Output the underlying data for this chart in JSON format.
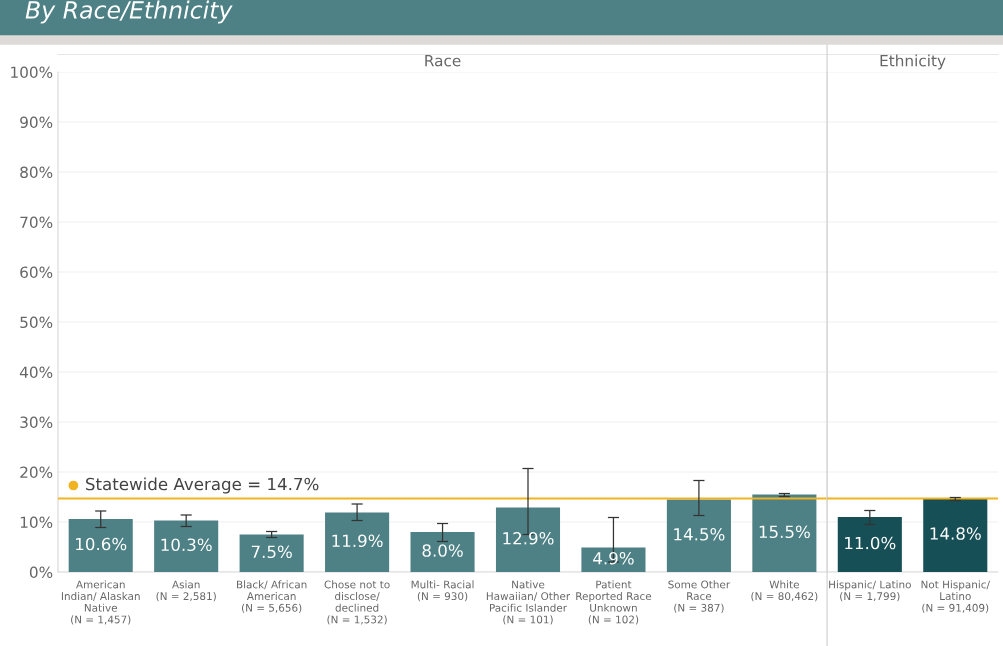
{
  "chart_data": [
    {
      "type": "bar",
      "title": "By Race/Ethnicity",
      "subtitle": "Race",
      "categories": [
        "American\nIndian/ Alaskan\nNative\n(N = 1,457)",
        "Asian\n(N = 2,581)",
        "Black/ African\nAmerican\n(N = 5,656)",
        "Chose not to\ndisclose/\ndeclined\n(N = 1,532)",
        "Multi- Racial\n(N = 930)",
        "Native\nHawaiian/ Other\nPacific Islander\n(N = 101)",
        "Patient\nReported Race\nUnknown\n(N = 102)",
        "Some Other\nRace\n(N = 387)",
        "White\n(N = 80,462)"
      ],
      "series": [
        {
          "color": "#4e8185",
          "values": [
            10.6,
            10.3,
            7.5,
            11.9,
            8.0,
            12.9,
            4.9,
            14.5,
            15.5
          ],
          "value_labels": [
            "10.6%",
            "10.3%",
            "7.5%",
            "11.9%",
            "8.0%",
            "12.9%",
            "4.9%",
            "14.5%",
            "15.5%"
          ],
          "errors": [
            [
              8.9,
              12.2
            ],
            [
              9.1,
              11.4
            ],
            [
              6.9,
              8.1
            ],
            [
              10.3,
              13.6
            ],
            [
              6.1,
              9.7
            ],
            [
              7.5,
              20.7
            ],
            [
              2.0,
              10.9
            ],
            [
              11.3,
              18.3
            ],
            [
              15.1,
              15.7
            ]
          ]
        }
      ],
      "ylim": [
        0,
        100
      ],
      "yticks": [
        {
          "value": 0,
          "label": "0%"
        },
        {
          "value": 10,
          "label": "10%"
        },
        {
          "value": 20,
          "label": "20%"
        },
        {
          "value": 30,
          "label": "30%"
        },
        {
          "value": 40,
          "label": "40%"
        },
        {
          "value": 50,
          "label": "50%"
        },
        {
          "value": 60,
          "label": "60%"
        },
        {
          "value": 70,
          "label": "70%"
        },
        {
          "value": 80,
          "label": "80%"
        },
        {
          "value": 90,
          "label": "90%"
        },
        {
          "value": 100,
          "label": "100%"
        }
      ],
      "grid": "y",
      "ref_lines": [
        {
          "axis": "y",
          "value": 14.7,
          "label": "Statewide Average = 14.7%",
          "color": "#f0b323"
        }
      ]
    },
    {
      "type": "bar",
      "subtitle": "Ethnicity",
      "categories": [
        "Hispanic/ Latino\n(N = 1,799)",
        "Not Hispanic/\nLatino\n(N = 91,409)"
      ],
      "series": [
        {
          "color": "#174f56",
          "values": [
            11.0,
            14.8
          ],
          "value_labels": [
            "11.0%",
            "14.8%"
          ],
          "errors": [
            [
              9.5,
              12.3
            ],
            [
              14.3,
              14.9
            ]
          ]
        }
      ],
      "ylim": [
        0,
        100
      ],
      "yticks": [
        0,
        10,
        20,
        30,
        40,
        50,
        60,
        70,
        80,
        90,
        100
      ],
      "grid": "y",
      "tick_labels": "x",
      "ref_lines": [
        {
          "axis": "y",
          "value": 14.7,
          "color": "#f0b323"
        }
      ]
    }
  ]
}
